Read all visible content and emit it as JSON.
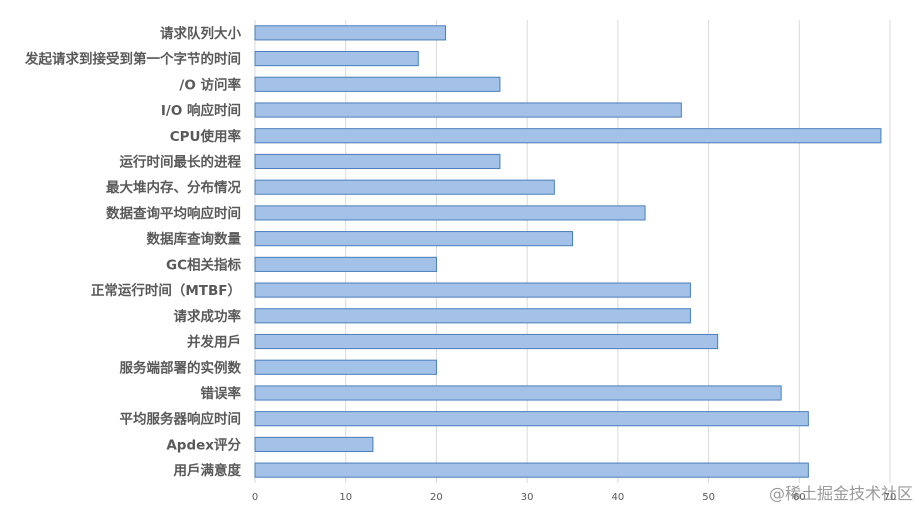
{
  "chart_data": {
    "type": "bar",
    "orientation": "horizontal",
    "categories": [
      "请求队列大小",
      "发起请求到接受到第一个字节的时间",
      "/O 访问率",
      "I/O 响应时间",
      "CPU使用率",
      "运行时间最长的进程",
      "最大堆内存、分布情况",
      "数据查询平均响应时间",
      "数据库查询数量",
      "GC相关指标",
      "正常运行时间（MTBF）",
      "请求成功率",
      "并发用戶",
      "服务端部署的实例数",
      "错误率",
      "平均服务器响应时间",
      "Apdex评分",
      "用戶满意度"
    ],
    "values": [
      21,
      18,
      27,
      47,
      69,
      27,
      33,
      43,
      35,
      20,
      48,
      48,
      51,
      20,
      58,
      61,
      13,
      61
    ],
    "xlim": [
      0,
      70
    ],
    "xticks": [
      0,
      10,
      20,
      30,
      40,
      50,
      60,
      70
    ],
    "xtick_labels": [
      "0",
      "10",
      "20",
      "30",
      "40",
      "50",
      "60",
      "70"
    ],
    "grid": true,
    "legend": "none",
    "bar_color": "#a4c2e8",
    "bar_edge_color": "#4a7ebb",
    "grid_color": "#d9d9d9",
    "title": "",
    "xlabel": "",
    "ylabel": ""
  },
  "watermark": "@稀土掘金技术社区"
}
